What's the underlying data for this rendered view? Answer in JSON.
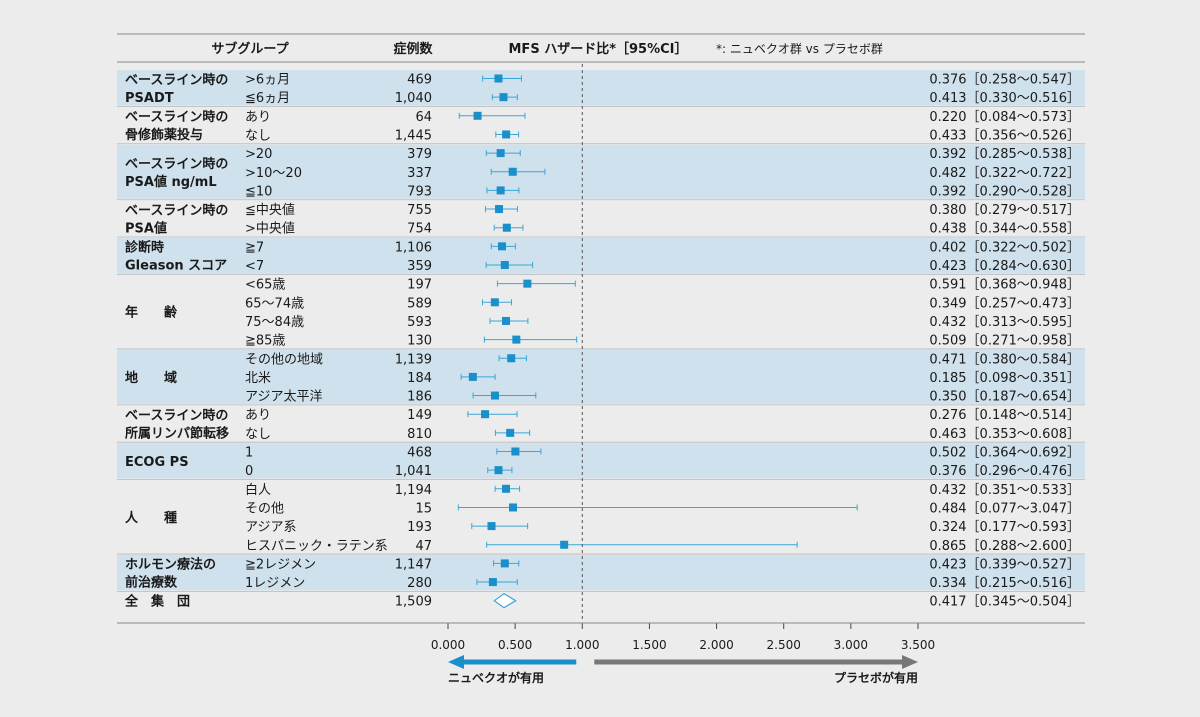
{
  "header": {
    "subgroup": "サブグループ",
    "n": "症例数",
    "hr": "MFS ハザード比*［95%CI］",
    "note": "*: ニュベクオ群 vs プラセボ群"
  },
  "favor": {
    "left": "ニュベクオが有用",
    "right": "プラセボが有用"
  },
  "colors": {
    "band": "#cfe1ec",
    "marker": "#1a8fc9",
    "line": "#3aa6d8",
    "arrow_left": "#1a8fc9",
    "arrow_right": "#777777"
  },
  "chart_data": {
    "type": "forest",
    "xlim": [
      0,
      3.5
    ],
    "xticks": [
      "0.000",
      "0.500",
      "1.000",
      "1.500",
      "2.000",
      "2.500",
      "3.000",
      "3.500"
    ],
    "reference_line": 1.0,
    "groups": [
      {
        "label": [
          "ベースライン時の",
          "PSADT"
        ],
        "shaded": true,
        "rows": [
          {
            "level": ">6ヵ月",
            "n": "469",
            "hr": 0.376,
            "lo": 0.258,
            "hi": 0.547,
            "text": "0.376［0.258～0.547］"
          },
          {
            "level": "≦6ヵ月",
            "n": "1,040",
            "hr": 0.413,
            "lo": 0.33,
            "hi": 0.516,
            "text": "0.413［0.330～0.516］"
          }
        ]
      },
      {
        "label": [
          "ベースライン時の",
          "骨修飾薬投与"
        ],
        "shaded": false,
        "rows": [
          {
            "level": "あり",
            "n": "64",
            "hr": 0.22,
            "lo": 0.084,
            "hi": 0.573,
            "text": "0.220［0.084～0.573］"
          },
          {
            "level": "なし",
            "n": "1,445",
            "hr": 0.433,
            "lo": 0.356,
            "hi": 0.526,
            "text": "0.433［0.356～0.526］"
          }
        ]
      },
      {
        "label": [
          "ベースライン時の",
          "PSA値 ng/mL"
        ],
        "shaded": true,
        "rows": [
          {
            "level": ">20",
            "n": "379",
            "hr": 0.392,
            "lo": 0.285,
            "hi": 0.538,
            "text": "0.392［0.285～0.538］"
          },
          {
            "level": ">10～20",
            "n": "337",
            "hr": 0.482,
            "lo": 0.322,
            "hi": 0.722,
            "text": "0.482［0.322～0.722］"
          },
          {
            "level": "≦10",
            "n": "793",
            "hr": 0.392,
            "lo": 0.29,
            "hi": 0.528,
            "text": "0.392［0.290～0.528］"
          }
        ]
      },
      {
        "label": [
          "ベースライン時の",
          "PSA値"
        ],
        "shaded": false,
        "rows": [
          {
            "level": "≦中央値",
            "n": "755",
            "hr": 0.38,
            "lo": 0.279,
            "hi": 0.517,
            "text": "0.380［0.279～0.517］"
          },
          {
            "level": ">中央値",
            "n": "754",
            "hr": 0.438,
            "lo": 0.344,
            "hi": 0.558,
            "text": "0.438［0.344～0.558］"
          }
        ]
      },
      {
        "label": [
          "診断時",
          "Gleason スコア"
        ],
        "shaded": true,
        "rows": [
          {
            "level": "≧7",
            "n": "1,106",
            "hr": 0.402,
            "lo": 0.322,
            "hi": 0.502,
            "text": "0.402［0.322～0.502］"
          },
          {
            "level": "<7",
            "n": "359",
            "hr": 0.423,
            "lo": 0.284,
            "hi": 0.63,
            "text": "0.423［0.284～0.630］"
          }
        ]
      },
      {
        "label": [
          "年　　齢"
        ],
        "shaded": false,
        "rows": [
          {
            "level": "<65歳",
            "n": "197",
            "hr": 0.591,
            "lo": 0.368,
            "hi": 0.948,
            "text": "0.591［0.368～0.948］"
          },
          {
            "level": "65～74歳",
            "n": "589",
            "hr": 0.349,
            "lo": 0.257,
            "hi": 0.473,
            "text": "0.349［0.257～0.473］"
          },
          {
            "level": "75～84歳",
            "n": "593",
            "hr": 0.432,
            "lo": 0.313,
            "hi": 0.595,
            "text": "0.432［0.313～0.595］"
          },
          {
            "level": "≧85歳",
            "n": "130",
            "hr": 0.509,
            "lo": 0.271,
            "hi": 0.958,
            "text": "0.509［0.271～0.958］"
          }
        ]
      },
      {
        "label": [
          "地　　域"
        ],
        "shaded": true,
        "rows": [
          {
            "level": "その他の地域",
            "n": "1,139",
            "hr": 0.471,
            "lo": 0.38,
            "hi": 0.584,
            "text": "0.471［0.380～0.584］"
          },
          {
            "level": "北米",
            "n": "184",
            "hr": 0.185,
            "lo": 0.098,
            "hi": 0.351,
            "text": "0.185［0.098～0.351］"
          },
          {
            "level": "アジア太平洋",
            "n": "186",
            "hr": 0.35,
            "lo": 0.187,
            "hi": 0.654,
            "text": "0.350［0.187～0.654］"
          }
        ]
      },
      {
        "label": [
          "ベースライン時の",
          "所属リンパ節転移"
        ],
        "shaded": false,
        "rows": [
          {
            "level": "あり",
            "n": "149",
            "hr": 0.276,
            "lo": 0.148,
            "hi": 0.514,
            "text": "0.276［0.148～0.514］"
          },
          {
            "level": "なし",
            "n": "810",
            "hr": 0.463,
            "lo": 0.353,
            "hi": 0.608,
            "text": "0.463［0.353～0.608］"
          }
        ]
      },
      {
        "label": [
          "ECOG PS"
        ],
        "shaded": true,
        "rows": [
          {
            "level": "1",
            "n": "468",
            "hr": 0.502,
            "lo": 0.364,
            "hi": 0.692,
            "text": "0.502［0.364～0.692］"
          },
          {
            "level": "0",
            "n": "1,041",
            "hr": 0.376,
            "lo": 0.296,
            "hi": 0.476,
            "text": "0.376［0.296～0.476］"
          }
        ]
      },
      {
        "label": [
          "人　　種"
        ],
        "shaded": false,
        "rows": [
          {
            "level": "白人",
            "n": "1,194",
            "hr": 0.432,
            "lo": 0.351,
            "hi": 0.533,
            "text": "0.432［0.351～0.533］"
          },
          {
            "level": "その他",
            "n": "15",
            "hr": 0.484,
            "lo": 0.077,
            "hi": 3.047,
            "text": "0.484［0.077～3.047］"
          },
          {
            "level": "アジア系",
            "n": "193",
            "hr": 0.324,
            "lo": 0.177,
            "hi": 0.593,
            "text": "0.324［0.177～0.593］"
          },
          {
            "level": "ヒスパニック・ラテン系",
            "n": "47",
            "hr": 0.865,
            "lo": 0.288,
            "hi": 2.6,
            "text": "0.865［0.288～2.600］"
          }
        ]
      },
      {
        "label": [
          "ホルモン療法の",
          "前治療数"
        ],
        "shaded": true,
        "rows": [
          {
            "level": "≧2レジメン",
            "n": "1,147",
            "hr": 0.423,
            "lo": 0.339,
            "hi": 0.527,
            "text": "0.423［0.339～0.527］"
          },
          {
            "level": "1レジメン",
            "n": "280",
            "hr": 0.334,
            "lo": 0.215,
            "hi": 0.516,
            "text": "0.334［0.215～0.516］"
          }
        ]
      }
    ],
    "overall": {
      "label": "全　集　団",
      "n": "1,509",
      "hr": 0.417,
      "lo": 0.345,
      "hi": 0.504,
      "text": "0.417［0.345～0.504］"
    }
  }
}
